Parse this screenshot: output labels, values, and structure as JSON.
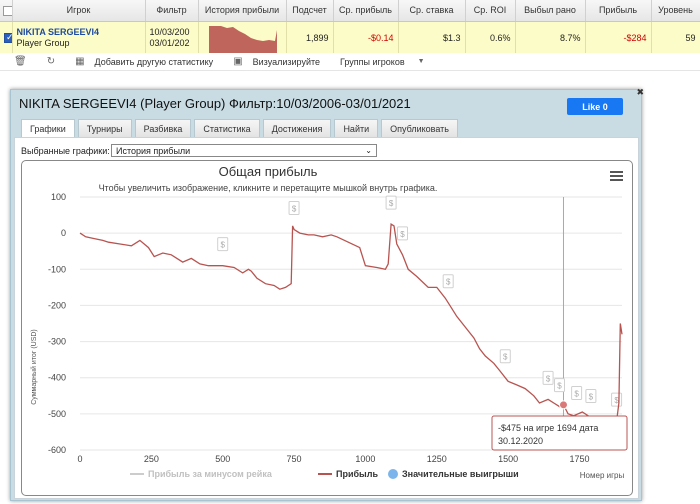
{
  "table": {
    "headers": [
      "Игрок",
      "Фильтр",
      "История прибыли",
      "Подсчет",
      "Ср. прибыль",
      "Ср. ставка",
      "Ср. ROI",
      "Выбыл рано",
      "Прибыль",
      "Уровень"
    ],
    "row": {
      "player_name": "NIKITA SERGEEVI4",
      "player_group": "Player Group",
      "filter_from": "10/03/200",
      "filter_to": "03/01/202",
      "count": "1,899",
      "avg_profit": "-$0.14",
      "avg_stake": "$1.3",
      "avg_roi": "0.6%",
      "early_out": "8.7%",
      "profit": "-$284",
      "level": "59"
    }
  },
  "toolbar": {
    "add_stats": "Добавить другую статистику",
    "visualize": "Визуализируйте",
    "player_groups": "Группы игроков"
  },
  "dialog": {
    "title": "NIKITA SERGEEVI4 (Player Group) Фильтр:10/03/2006-03/01/2021",
    "like": "Like 0",
    "tabs": [
      "Графики",
      "Турниры",
      "Разбивка",
      "Статистика",
      "Достижения",
      "Найти",
      "Опубликовать"
    ],
    "graph_label": "Выбранные графики:",
    "graph_selected": "История прибыли"
  },
  "chart_data": {
    "type": "line",
    "title": "Общая прибыль",
    "subtitle": "Чтобы увеличить изображение, кликните и перетащите мышкой внутрь графика.",
    "ylabel": "Суммарный итог (USD)",
    "xlabel": "Номер игры",
    "xlim": [
      0,
      1899
    ],
    "ylim": [
      -600,
      100
    ],
    "x_ticks": [
      0,
      250,
      500,
      750,
      1000,
      1250,
      1500,
      1750
    ],
    "y_ticks": [
      100,
      0,
      -100,
      -200,
      -300,
      -400,
      -500,
      -600
    ],
    "grid": "horizontal",
    "legend": [
      "Прибыль за минусом рейка",
      "Прибыль",
      "Значительные выигрыши"
    ],
    "series": [
      {
        "name": "Прибыль",
        "color": "#b85450",
        "x": [
          0,
          20,
          50,
          80,
          100,
          140,
          180,
          210,
          240,
          260,
          290,
          320,
          360,
          390,
          420,
          450,
          500,
          540,
          570,
          590,
          600,
          620,
          650,
          680,
          700,
          720,
          740,
          745,
          750,
          770,
          800,
          820,
          850,
          880,
          900,
          940,
          980,
          1000,
          1040,
          1070,
          1080,
          1090,
          1100,
          1110,
          1130,
          1150,
          1180,
          1220,
          1250,
          1280,
          1300,
          1320,
          1350,
          1380,
          1400,
          1420,
          1450,
          1470,
          1500,
          1530,
          1560,
          1590,
          1610,
          1640,
          1660,
          1680,
          1694,
          1710,
          1730,
          1760,
          1790,
          1820,
          1850,
          1870,
          1880,
          1888,
          1893,
          1899
        ],
        "y": [
          0,
          -10,
          -15,
          -20,
          -25,
          -30,
          -35,
          -20,
          -40,
          -65,
          -55,
          -60,
          -80,
          -70,
          -85,
          -90,
          -90,
          -95,
          -110,
          -100,
          -105,
          -125,
          -140,
          -145,
          -155,
          -150,
          -140,
          20,
          10,
          0,
          -5,
          -5,
          -10,
          -5,
          -10,
          -25,
          -40,
          -90,
          -95,
          -100,
          -85,
          25,
          20,
          -30,
          -60,
          -100,
          -120,
          -150,
          -150,
          -180,
          -205,
          -230,
          -260,
          -290,
          -320,
          -340,
          -360,
          -380,
          -410,
          -420,
          -430,
          -450,
          -470,
          -460,
          -470,
          -480,
          -475,
          -500,
          -505,
          -495,
          -510,
          -520,
          -530,
          -530,
          -520,
          -470,
          -250,
          -280
        ]
      }
    ],
    "marked_point": {
      "x": 1694,
      "y": -475
    },
    "big_win_markers_x": [
      500,
      750,
      1090,
      1130,
      1290,
      1490,
      1640,
      1680,
      1740,
      1790,
      1880
    ],
    "tooltip": {
      "line1": "-$475 на игре 1694 дата",
      "line2": "30.12.2020"
    }
  }
}
